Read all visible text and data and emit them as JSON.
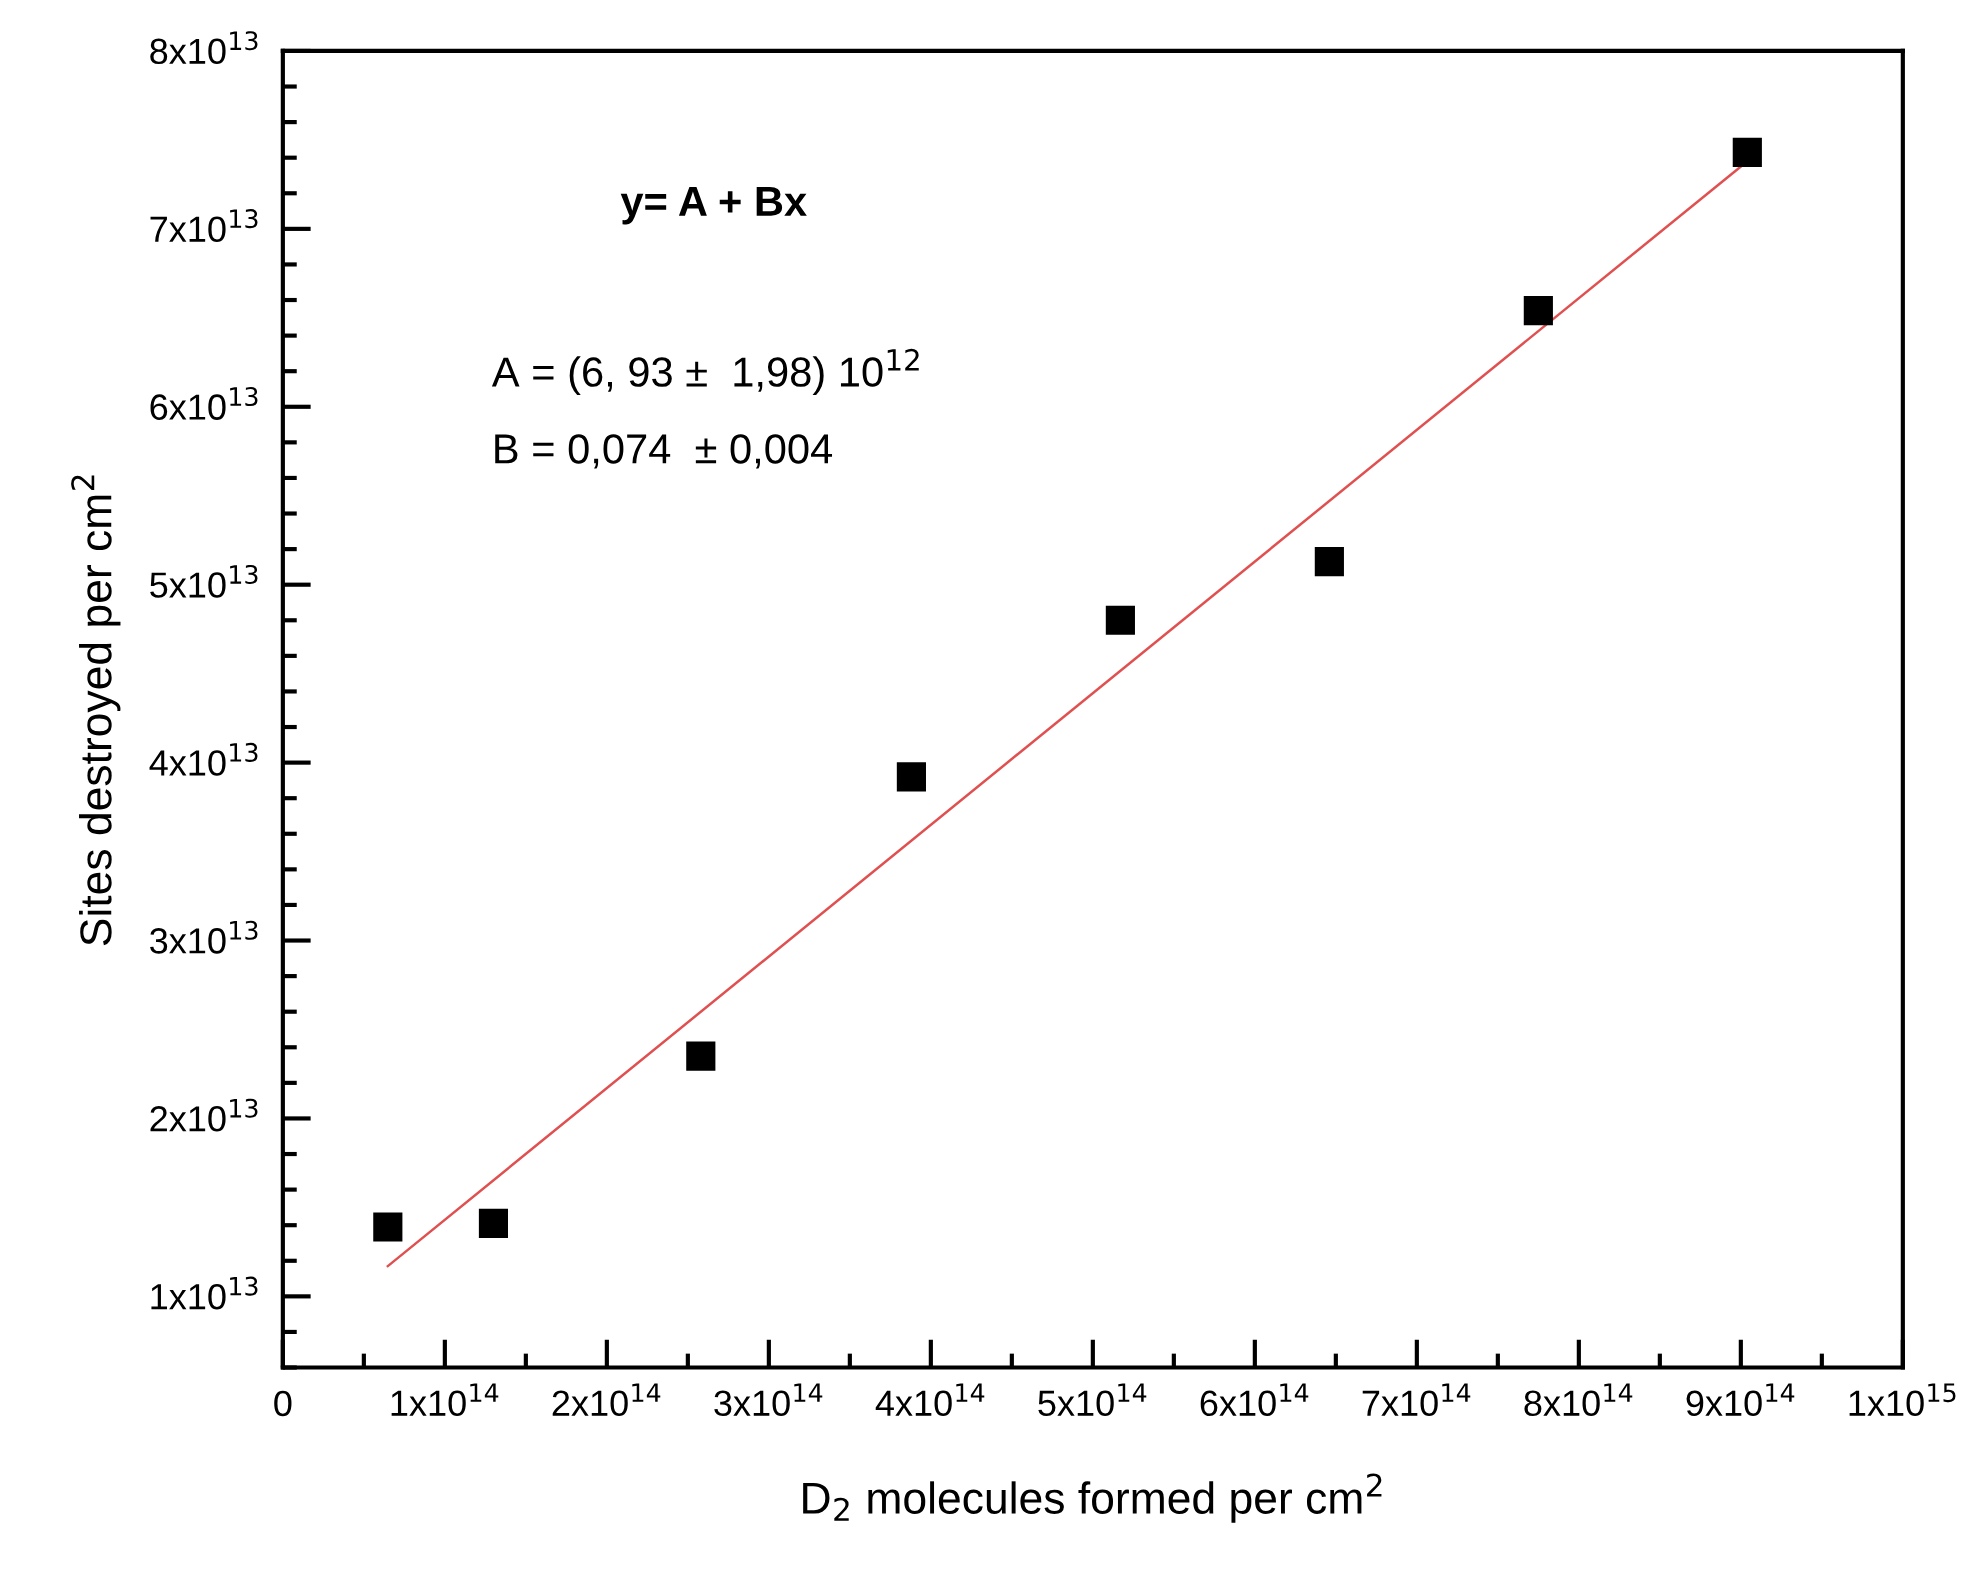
{
  "chart_data": {
    "type": "scatter",
    "xlabel": "D$_{2}$ molecules formed per cm$^{2}$",
    "ylabel": "Sites destroyed per cm$^{2}$",
    "series": [
      {
        "color": "#000000",
        "marker": "square",
        "x": [
          64800000000000.0,
          130000000000000.0,
          258000000000000.0,
          388000000000000.0,
          517000000000000.0,
          646000000000000.0,
          775000000000000.0,
          904000000000000.0
        ],
        "values": [
          13900000000000.0,
          14100000000000.0,
          23500000000000.0,
          39200000000000.0,
          48000000000000.0,
          51300000000000.0,
          65400000000000.0,
          74300000000000.0
        ]
      },
      {
        "type": "line",
        "color": "#e05050",
        "marker": "none",
        "line_style": "solid",
        "x": [
          64800000000000.0,
          904000000000000.0
        ],
        "values": [
          11700000000000.0,
          73800000000000.0
        ]
      }
    ],
    "annotations": [
      "y= A + Bx",
      "A = (6, 93 ±  1,98) 10$^{12}$",
      "B = 0,074  ± 0,004"
    ],
    "xlim": [
      0,
      1000000000000000.0
    ],
    "ylim": [
      6000000000000.0,
      80000000000000.0
    ],
    "xticks": [
      {
        "value": 0,
        "label": "0"
      },
      {
        "value": 100000000000000.0,
        "label": "1x10$^{14}$"
      },
      {
        "value": 200000000000000.0,
        "label": "2x10$^{14}$"
      },
      {
        "value": 300000000000000.0,
        "label": "3x10$^{14}$"
      },
      {
        "value": 400000000000000.0,
        "label": "4x10$^{14}$"
      },
      {
        "value": 500000000000000.0,
        "label": "5x10$^{14}$"
      },
      {
        "value": 600000000000000.0,
        "label": "6x10$^{14}$"
      },
      {
        "value": 700000000000000.0,
        "label": "7x10$^{14}$"
      },
      {
        "value": 800000000000000.0,
        "label": "8x10$^{14}$"
      },
      {
        "value": 900000000000000.0,
        "label": "9x10$^{14}$"
      },
      {
        "value": 1000000000000000.0,
        "label": "1x10$^{15}$"
      },
      {
        "value": 50000000000000.0,
        "label": null
      },
      {
        "value": 150000000000000.0,
        "label": null
      },
      {
        "value": 250000000000000.0,
        "label": null
      },
      {
        "value": 350000000000000.0,
        "label": null
      },
      {
        "value": 450000000000000.0,
        "label": null
      },
      {
        "value": 550000000000000.0,
        "label": null
      },
      {
        "value": 650000000000000.0,
        "label": null
      },
      {
        "value": 750000000000000.0,
        "label": null
      },
      {
        "value": 850000000000000.0,
        "label": null
      },
      {
        "value": 950000000000000.0,
        "label": null
      }
    ],
    "yticks": [
      {
        "value": 10000000000000.0,
        "label": "1x10$^{13}$"
      },
      {
        "value": 20000000000000.0,
        "label": "2x10$^{13}$"
      },
      {
        "value": 30000000000000.0,
        "label": "3x10$^{13}$"
      },
      {
        "value": 40000000000000.0,
        "label": "4x10$^{13}$"
      },
      {
        "value": 50000000000000.0,
        "label": "5x10$^{13}$"
      },
      {
        "value": 60000000000000.0,
        "label": "6x10$^{13}$"
      },
      {
        "value": 70000000000000.0,
        "label": "7x10$^{13}$"
      },
      {
        "value": 80000000000000.0,
        "label": "8x10$^{13}$"
      },
      {
        "value": 6000000000000.0,
        "label": null
      },
      {
        "value": 8000000000000.0,
        "label": null
      },
      {
        "value": 12000000000000.0,
        "label": null
      },
      {
        "value": 14000000000000.0,
        "label": null
      },
      {
        "value": 16000000000000.0,
        "label": null
      },
      {
        "value": 18000000000000.0,
        "label": null
      },
      {
        "value": 22000000000000.0,
        "label": null
      },
      {
        "value": 24000000000000.0,
        "label": null
      },
      {
        "value": 26000000000000.0,
        "label": null
      },
      {
        "value": 28000000000000.0,
        "label": null
      },
      {
        "value": 32000000000000.0,
        "label": null
      },
      {
        "value": 34000000000000.0,
        "label": null
      },
      {
        "value": 36000000000000.0,
        "label": null
      },
      {
        "value": 38000000000000.0,
        "label": null
      },
      {
        "value": 42000000000000.0,
        "label": null
      },
      {
        "value": 44000000000000.0,
        "label": null
      },
      {
        "value": 46000000000000.0,
        "label": null
      },
      {
        "value": 48000000000000.0,
        "label": null
      },
      {
        "value": 52000000000000.0,
        "label": null
      },
      {
        "value": 54000000000000.0,
        "label": null
      },
      {
        "value": 56000000000000.0,
        "label": null
      },
      {
        "value": 58000000000000.0,
        "label": null
      },
      {
        "value": 62000000000000.0,
        "label": null
      },
      {
        "value": 64000000000000.0,
        "label": null
      },
      {
        "value": 66000000000000.0,
        "label": null
      },
      {
        "value": 68000000000000.0,
        "label": null
      },
      {
        "value": 72000000000000.0,
        "label": null
      },
      {
        "value": 74000000000000.0,
        "label": null
      },
      {
        "value": 76000000000000.0,
        "label": null
      },
      {
        "value": 78000000000000.0,
        "label": null
      }
    ],
    "grid": false,
    "legend": false
  }
}
